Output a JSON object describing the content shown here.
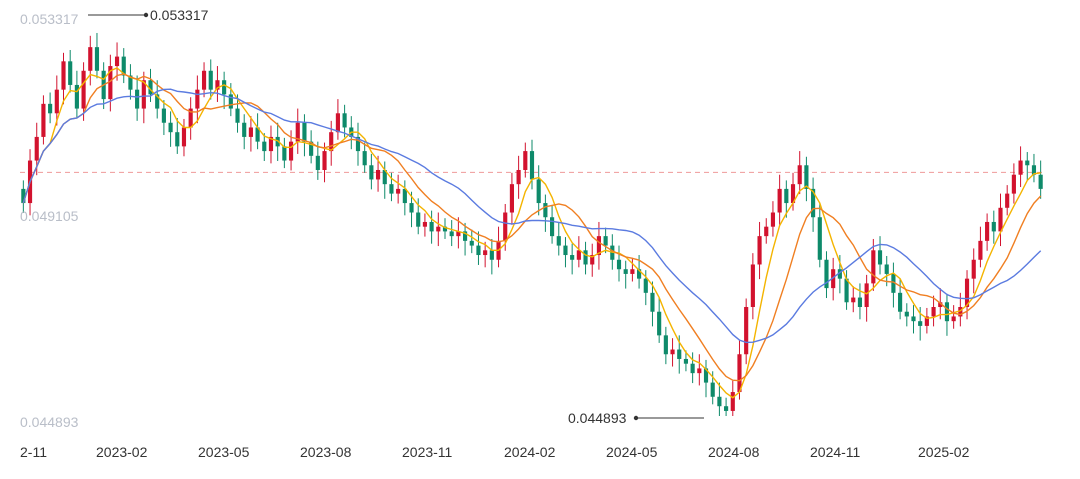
{
  "chart_data": {
    "type": "candlestick",
    "y_axis": {
      "ticks": [
        "0.053317",
        "0.049105",
        "0.044893"
      ],
      "range": [
        0.044893,
        0.053317
      ]
    },
    "x_axis": {
      "ticks": [
        "2-11",
        "2023-02",
        "2023-05",
        "2023-08",
        "2023-11",
        "2024-02",
        "2024-05",
        "2024-08",
        "2024-11",
        "2025-02"
      ]
    },
    "max_marker": {
      "label": "0.053317",
      "value": 0.053317
    },
    "min_marker": {
      "label": "0.044893",
      "value": 0.044893
    },
    "reference_line": {
      "value": 0.05005,
      "style": "dashed",
      "color": "#ef9a9a"
    },
    "colors": {
      "up": "#d2122e",
      "down": "#0e8a6a",
      "ma_short": "#f4b400",
      "ma_mid": "#f07f22",
      "ma_long": "#5b7be0"
    },
    "closes": [
      0.0494,
      0.0503,
      0.0508,
      0.0515,
      0.0513,
      0.0518,
      0.0524,
      0.0519,
      0.0514,
      0.0522,
      0.0527,
      0.0522,
      0.0516,
      0.0523,
      0.0525,
      0.0521,
      0.0518,
      0.0514,
      0.052,
      0.0517,
      0.0514,
      0.0511,
      0.0509,
      0.0506,
      0.051,
      0.0514,
      0.0518,
      0.0522,
      0.0518,
      0.052,
      0.0517,
      0.0514,
      0.0511,
      0.0508,
      0.051,
      0.0507,
      0.0505,
      0.0508,
      0.0506,
      0.0503,
      0.0507,
      0.0511,
      0.0507,
      0.0504,
      0.0501,
      0.0505,
      0.0509,
      0.0513,
      0.051,
      0.0508,
      0.0505,
      0.0502,
      0.0499,
      0.0501,
      0.0498,
      0.0496,
      0.0497,
      0.0494,
      0.0492,
      0.0489,
      0.049,
      0.0488,
      0.0489,
      0.0488,
      0.0487,
      0.0488,
      0.0486,
      0.0485,
      0.0483,
      0.0484,
      0.0482,
      0.0486,
      0.0492,
      0.0498,
      0.0501,
      0.0505,
      0.0499,
      0.0494,
      0.0491,
      0.0487,
      0.0485,
      0.0483,
      0.0482,
      0.0484,
      0.0481,
      0.0483,
      0.0487,
      0.0485,
      0.0482,
      0.048,
      0.0479,
      0.048,
      0.0478,
      0.0475,
      0.0471,
      0.0466,
      0.0462,
      0.0463,
      0.0461,
      0.046,
      0.0458,
      0.0459,
      0.0456,
      0.0453,
      0.0451,
      0.045,
      0.0454,
      0.0462,
      0.0472,
      0.0481,
      0.0487,
      0.0489,
      0.0492,
      0.0497,
      0.0494,
      0.0498,
      0.0502,
      0.0497,
      0.0491,
      0.0482,
      0.0476,
      0.048,
      0.0478,
      0.0473,
      0.0474,
      0.0472,
      0.0477,
      0.0484,
      0.0481,
      0.0479,
      0.0475,
      0.0471,
      0.047,
      0.0469,
      0.0468,
      0.047,
      0.0472,
      0.0473,
      0.0469,
      0.047,
      0.0472,
      0.0478,
      0.0482,
      0.0486,
      0.049,
      0.0488,
      0.0493,
      0.0496,
      0.05,
      0.0503,
      0.0502,
      0.05,
      0.0497
    ]
  }
}
